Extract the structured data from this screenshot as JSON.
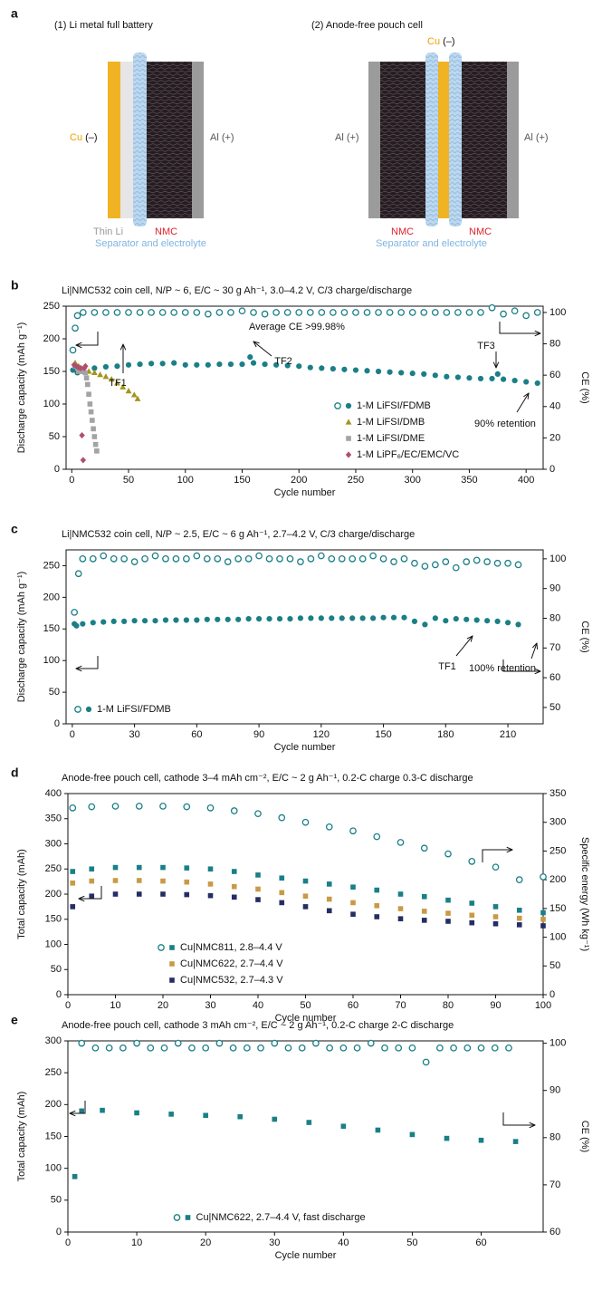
{
  "panel_a": {
    "label": "a",
    "cells": [
      {
        "title": "(1) Li metal full battery",
        "cu": "Cu",
        "cu_sign": "(–)",
        "al": "Al (+)",
        "thin_li": "Thin Li",
        "nmc": "NMC",
        "separator": "Separator and electrolyte"
      },
      {
        "title": "(2) Anode-free pouch cell",
        "cu": "Cu",
        "cu_sign": "(–)",
        "al_left": "Al (+)",
        "al_right": "Al (+)",
        "nmc_left": "NMC",
        "nmc_right": "NMC",
        "separator": "Separator and electrolyte"
      }
    ]
  },
  "chart_data": [
    {
      "type": "scatter",
      "label": "b",
      "title": "Li|NMC532 coin cell, N/P ~ 6, E/C ~ 30 g Ah⁻¹, 3.0–4.2 V, C/3 charge/discharge",
      "xlabel": "Cycle number",
      "ylabel": "Discharge capacity (mAh g⁻¹)",
      "y2label": "CE (%)",
      "xlim": [
        -5,
        415
      ],
      "xticks": [
        0,
        50,
        100,
        150,
        200,
        250,
        300,
        350,
        400
      ],
      "ylim": [
        0,
        250
      ],
      "yticks": [
        0,
        50,
        100,
        150,
        200,
        250
      ],
      "y2lim": [
        0,
        104
      ],
      "y2ticks": [
        0,
        20,
        40,
        60,
        80,
        100
      ],
      "legend": "lower right",
      "annotations": [
        "Average CE >99.98%",
        "TF1",
        "TF2",
        "TF3",
        "90% retention"
      ],
      "series": [
        {
          "axis": "y2",
          "marker": "circle-open",
          "color": "#1a7f86",
          "x": [
            1,
            3,
            5,
            10,
            20,
            30,
            40,
            50,
            60,
            70,
            80,
            90,
            100,
            110,
            120,
            130,
            140,
            150,
            160,
            170,
            180,
            190,
            200,
            210,
            220,
            230,
            240,
            250,
            260,
            270,
            280,
            290,
            300,
            310,
            320,
            330,
            340,
            350,
            360,
            370,
            380,
            390,
            400,
            410
          ],
          "values": [
            76,
            90,
            98,
            100,
            100,
            100,
            100,
            100,
            100,
            100,
            100,
            100,
            100,
            100,
            99,
            100,
            100,
            101,
            100,
            99,
            100,
            100,
            100,
            100,
            100,
            100,
            100,
            100,
            100,
            100,
            100,
            100,
            100,
            100,
            100,
            100,
            100,
            100,
            100,
            103,
            99,
            101,
            98,
            100
          ]
        },
        {
          "name": "1-M LiFSI/FDMB",
          "marker": "circle",
          "color": "#1a7f86",
          "x": [
            1,
            5,
            10,
            20,
            30,
            40,
            50,
            60,
            70,
            80,
            90,
            100,
            110,
            120,
            130,
            140,
            150,
            157,
            160,
            170,
            180,
            190,
            200,
            210,
            220,
            230,
            240,
            250,
            260,
            270,
            280,
            290,
            300,
            310,
            320,
            330,
            340,
            350,
            360,
            370,
            375,
            380,
            390,
            400,
            410
          ],
          "values": [
            152,
            148,
            150,
            155,
            157,
            158,
            160,
            161,
            162,
            162,
            163,
            160,
            160,
            160,
            161,
            161,
            161,
            172,
            163,
            161,
            160,
            159,
            158,
            156,
            155,
            154,
            153,
            152,
            151,
            150,
            149,
            148,
            147,
            146,
            144,
            142,
            141,
            140,
            139,
            139,
            146,
            138,
            136,
            134,
            132
          ]
        },
        {
          "name": "1-M LiFSI/DMB",
          "marker": "triangle",
          "color": "#a3951b",
          "x": [
            3,
            6,
            10,
            15,
            20,
            25,
            30,
            35,
            40,
            45,
            50,
            55,
            58
          ],
          "values": [
            163,
            158,
            152,
            150,
            148,
            145,
            142,
            138,
            132,
            126,
            120,
            114,
            108
          ]
        },
        {
          "name": "1-M LiFSI/DME",
          "marker": "square",
          "color": "#a3a3a3",
          "x": [
            3,
            6,
            9,
            12,
            13,
            14,
            15,
            16,
            17,
            18,
            19,
            20,
            21,
            22
          ],
          "values": [
            158,
            150,
            150,
            148,
            140,
            130,
            115,
            100,
            88,
            75,
            62,
            50,
            38,
            28
          ]
        },
        {
          "name": "1-M LiPF₆/EC/EMC/VC",
          "marker": "diamond",
          "color": "#b04f6c",
          "x": [
            2,
            4,
            6,
            8,
            9,
            10,
            11,
            12
          ],
          "values": [
            160,
            158,
            156,
            155,
            52,
            14,
            155,
            158
          ]
        }
      ]
    },
    {
      "type": "scatter",
      "label": "c",
      "title": "Li|NMC532 coin cell, N/P ~ 2.5, E/C ~ 6 g Ah⁻¹, 2.7–4.2 V, C/3 charge/discharge",
      "xlabel": "Cycle number",
      "ylabel": "Discharge capacity (mAh g⁻¹)",
      "y2label": "CE (%)",
      "xlim": [
        -3,
        227
      ],
      "xticks": [
        0,
        30,
        60,
        90,
        120,
        150,
        180,
        210
      ],
      "ylim": [
        0,
        275
      ],
      "yticks": [
        0,
        50,
        100,
        150,
        200,
        250
      ],
      "y2lim": [
        44.5,
        103
      ],
      "y2ticks": [
        50,
        60,
        70,
        80,
        90,
        100
      ],
      "legend": "lower left",
      "annotations": [
        "TF1",
        "100% retention"
      ],
      "series": [
        {
          "axis": "y2",
          "marker": "circle-open",
          "color": "#1a7f86",
          "x": [
            1,
            3,
            5,
            10,
            15,
            20,
            25,
            30,
            35,
            40,
            45,
            50,
            55,
            60,
            65,
            70,
            75,
            80,
            85,
            90,
            95,
            100,
            105,
            110,
            115,
            120,
            125,
            130,
            135,
            140,
            145,
            150,
            155,
            160,
            165,
            170,
            175,
            180,
            185,
            190,
            195,
            200,
            205,
            210,
            215
          ],
          "values": [
            82,
            95,
            100,
            100,
            101,
            100,
            100,
            99,
            100,
            101,
            100,
            100,
            100,
            101,
            100,
            100,
            99,
            100,
            100,
            101,
            100,
            100,
            100,
            99,
            100,
            101,
            100,
            100,
            100,
            100,
            101,
            100,
            99,
            100,
            98.5,
            97.5,
            98,
            99,
            97,
            99,
            99.5,
            99,
            98.5,
            98.5,
            98
          ]
        },
        {
          "name": "1-M LiFSI/FDMB",
          "marker": "circle",
          "color": "#1a7f86",
          "x": [
            1,
            2,
            5,
            10,
            15,
            20,
            25,
            30,
            35,
            40,
            45,
            50,
            55,
            60,
            65,
            70,
            75,
            80,
            85,
            90,
            95,
            100,
            105,
            110,
            115,
            120,
            125,
            130,
            135,
            140,
            145,
            150,
            155,
            160,
            165,
            170,
            175,
            180,
            185,
            190,
            195,
            200,
            205,
            210,
            215
          ],
          "values": [
            158,
            155,
            158,
            160,
            161,
            162,
            162,
            163,
            163,
            163,
            164,
            164,
            164,
            164,
            165,
            165,
            165,
            165,
            166,
            166,
            166,
            166,
            166,
            167,
            167,
            167,
            167,
            167,
            167,
            167,
            167,
            168,
            168,
            168,
            162,
            157,
            167,
            163,
            166,
            165,
            164,
            163,
            162,
            160,
            157
          ]
        }
      ]
    },
    {
      "type": "scatter",
      "label": "d",
      "title": "Anode-free pouch cell, cathode 3–4 mAh cm⁻², E/C ~ 2 g Ah⁻¹, 0.2-C charge 0.3-C discharge",
      "xlabel": "Cycle number",
      "ylabel": "Total capacity (mAh)",
      "y2label": "Specific energy (Wh kg⁻¹)",
      "xlim": [
        0,
        100
      ],
      "xticks": [
        0,
        10,
        20,
        30,
        40,
        50,
        60,
        70,
        80,
        90,
        100
      ],
      "ylim": [
        0,
        400
      ],
      "yticks": [
        0,
        50,
        100,
        150,
        200,
        250,
        300,
        350,
        400
      ],
      "y2lim": [
        0,
        350
      ],
      "y2ticks": [
        0,
        50,
        100,
        150,
        200,
        250,
        300,
        350
      ],
      "legend": "lower left",
      "series": [
        {
          "axis": "y2",
          "marker": "circle-open",
          "color": "#1a7f86",
          "x": [
            1,
            5,
            10,
            15,
            20,
            25,
            30,
            35,
            40,
            45,
            50,
            55,
            60,
            65,
            70,
            75,
            80,
            85,
            90,
            95,
            100
          ],
          "values": [
            325,
            327,
            328,
            328,
            328,
            327,
            325,
            320,
            315,
            308,
            300,
            292,
            285,
            275,
            265,
            255,
            245,
            232,
            222,
            200,
            205
          ]
        },
        {
          "name": "Cu|NMC811, 2.8–4.4 V",
          "marker": "square",
          "color": "#1a7f86",
          "x": [
            1,
            5,
            10,
            15,
            20,
            25,
            30,
            35,
            40,
            45,
            50,
            55,
            60,
            65,
            70,
            75,
            80,
            85,
            90,
            95,
            100
          ],
          "values": [
            245,
            250,
            253,
            253,
            253,
            252,
            250,
            245,
            238,
            232,
            226,
            220,
            214,
            208,
            200,
            195,
            188,
            182,
            175,
            168,
            163
          ]
        },
        {
          "name": "Cu|NMC622, 2.7–4.4 V",
          "marker": "square",
          "color": "#c99a45",
          "x": [
            1,
            5,
            10,
            15,
            20,
            25,
            30,
            35,
            40,
            45,
            50,
            55,
            60,
            65,
            70,
            75,
            80,
            85,
            90,
            95,
            100
          ],
          "values": [
            222,
            226,
            227,
            227,
            226,
            224,
            220,
            215,
            210,
            203,
            196,
            190,
            183,
            177,
            171,
            166,
            162,
            158,
            155,
            152,
            150
          ]
        },
        {
          "name": "Cu|NMC532, 2.7–4.3 V",
          "marker": "square",
          "color": "#262d62",
          "x": [
            1,
            5,
            10,
            15,
            20,
            25,
            30,
            35,
            40,
            45,
            50,
            55,
            60,
            65,
            70,
            75,
            80,
            85,
            90,
            95,
            100
          ],
          "values": [
            175,
            196,
            200,
            200,
            200,
            199,
            197,
            194,
            189,
            183,
            175,
            167,
            160,
            155,
            151,
            148,
            146,
            143,
            141,
            139,
            137
          ]
        }
      ]
    },
    {
      "type": "scatter",
      "label": "e",
      "title": "Anode-free pouch cell, cathode 3 mAh cm⁻², E/C ~ 2 g Ah⁻¹, 0.2-C charge 2-C discharge",
      "xlabel": "Cycle number",
      "ylabel": "Total capacity (mAh)",
      "y2label": "CE (%)",
      "xlim": [
        0,
        69
      ],
      "xticks": [
        0,
        10,
        20,
        30,
        40,
        50,
        60
      ],
      "ylim": [
        0,
        300
      ],
      "yticks": [
        0,
        50,
        100,
        150,
        200,
        250,
        300
      ],
      "y2lim": [
        60,
        100.5
      ],
      "y2ticks": [
        60,
        70,
        80,
        90,
        100
      ],
      "legend": "lower center",
      "series": [
        {
          "axis": "y2",
          "marker": "circle-open",
          "color": "#1a7f86",
          "x": [
            2,
            4,
            6,
            8,
            10,
            12,
            14,
            16,
            18,
            20,
            22,
            24,
            26,
            28,
            30,
            32,
            34,
            36,
            38,
            40,
            42,
            44,
            46,
            48,
            50,
            52,
            54,
            56,
            58,
            60,
            62,
            64
          ],
          "values": [
            100,
            99,
            99,
            99,
            100,
            99,
            99,
            100,
            99,
            99,
            100,
            99,
            99,
            99,
            100,
            99,
            99,
            100,
            99,
            99,
            99,
            100,
            99,
            99,
            99,
            96,
            99,
            99,
            99,
            99,
            99,
            99
          ]
        },
        {
          "name": "Cu|NMC622, 2.7–4.4 V, fast discharge",
          "marker": "square",
          "color": "#1a7f86",
          "x": [
            1,
            2,
            5,
            10,
            15,
            20,
            25,
            30,
            35,
            40,
            45,
            50,
            55,
            60,
            65
          ],
          "values": [
            87,
            190,
            191,
            187,
            185,
            183,
            181,
            177,
            172,
            166,
            160,
            153,
            147,
            144,
            142
          ]
        }
      ]
    }
  ]
}
